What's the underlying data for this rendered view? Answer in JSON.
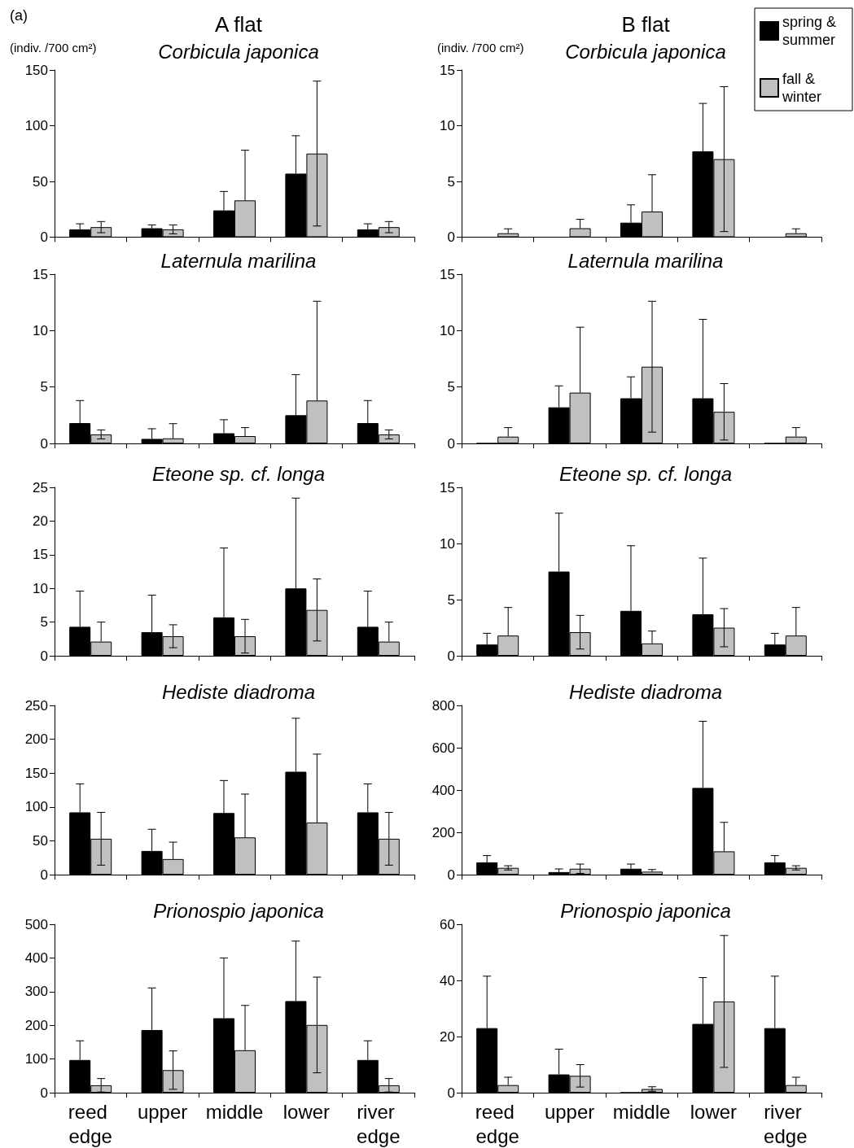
{
  "chart_data": [
    {
      "type": "bar",
      "title": "A flat",
      "subtitle": "Corbicula japonica",
      "ylabel": "(indiv. /700 cm²)",
      "annotations": [
        "(a)"
      ],
      "categories": [
        "reed edge",
        "upper",
        "middle",
        "lower",
        "river edge"
      ],
      "ylim": [
        0,
        150
      ],
      "yticks": [
        0,
        50,
        100,
        150
      ],
      "tick_labels": "y",
      "legend": false,
      "series": [
        {
          "color": "#000000",
          "values": [
            7,
            8,
            24,
            57,
            7
          ],
          "errors": [
            [
              7,
              12
            ],
            [
              8,
              11
            ],
            [
              24,
              41
            ],
            [
              57,
              91
            ],
            [
              7,
              12
            ]
          ]
        },
        {
          "color": "#c0c0c0",
          "values": [
            9,
            7,
            33,
            75,
            9
          ],
          "errors": [
            [
              4,
              14
            ],
            [
              3,
              11
            ],
            [
              33,
              78
            ],
            [
              10,
              140
            ],
            [
              4,
              14
            ]
          ]
        }
      ]
    },
    {
      "type": "bar",
      "title": "B flat",
      "subtitle": "Corbicula japonica",
      "ylabel": "(indiv. /700 cm²)",
      "categories": [
        "reed edge",
        "upper",
        "middle",
        "lower",
        "river edge"
      ],
      "ylim": [
        0,
        15
      ],
      "yticks": [
        0,
        5,
        10,
        15
      ],
      "tick_labels": "y",
      "legend": "top right",
      "series": [
        {
          "name": "spring & summer",
          "color": "#000000",
          "values": [
            0,
            0,
            1.3,
            7.7,
            0
          ],
          "errors": [
            null,
            null,
            [
              1.3,
              2.9
            ],
            [
              7.7,
              12
            ],
            null
          ]
        },
        {
          "name": "fall & winter",
          "color": "#c0c0c0",
          "values": [
            0.35,
            0.8,
            2.3,
            7.0,
            0.35
          ],
          "errors": [
            [
              0.35,
              0.75
            ],
            [
              0.8,
              1.6
            ],
            [
              2.3,
              5.6
            ],
            [
              0.5,
              13.5
            ],
            [
              0.35,
              0.75
            ]
          ]
        }
      ]
    },
    {
      "type": "bar",
      "title": "Laternula marilina",
      "categories": [
        "reed edge",
        "upper",
        "middle",
        "lower",
        "river edge"
      ],
      "ylim": [
        0,
        15
      ],
      "yticks": [
        0,
        5,
        10,
        15
      ],
      "tick_labels": "y",
      "legend": false,
      "series": [
        {
          "color": "#000000",
          "values": [
            1.8,
            0.4,
            0.9,
            2.5,
            1.8
          ],
          "errors": [
            [
              1.8,
              3.8
            ],
            [
              0.4,
              1.3
            ],
            [
              0.9,
              2.1
            ],
            [
              2.5,
              6.1
            ],
            [
              1.8,
              3.8
            ]
          ]
        },
        {
          "color": "#c0c0c0",
          "values": [
            0.8,
            0.45,
            0.65,
            3.8,
            0.8
          ],
          "errors": [
            [
              0.4,
              1.2
            ],
            [
              0.45,
              1.75
            ],
            [
              0.65,
              1.4
            ],
            [
              3.8,
              12.6
            ],
            [
              0.4,
              1.2
            ]
          ]
        }
      ]
    },
    {
      "type": "bar",
      "title": "Laternula marilina",
      "categories": [
        "reed edge",
        "upper",
        "middle",
        "lower",
        "river edge"
      ],
      "ylim": [
        0,
        15
      ],
      "yticks": [
        0,
        5,
        10,
        15
      ],
      "tick_labels": "y",
      "legend": false,
      "series": [
        {
          "color": "#000000",
          "values": [
            0,
            3.2,
            4.0,
            4.0,
            0
          ],
          "errors": [
            null,
            [
              3.2,
              5.1
            ],
            [
              4.0,
              5.9
            ],
            [
              4.0,
              11
            ],
            null
          ]
        },
        {
          "color": "#c0c0c0",
          "values": [
            0.6,
            4.5,
            6.8,
            2.8,
            0.6
          ],
          "errors": [
            [
              0.6,
              1.4
            ],
            [
              4.5,
              10.3
            ],
            [
              1.0,
              12.6
            ],
            [
              0.3,
              5.3
            ],
            [
              0.6,
              1.4
            ]
          ]
        }
      ]
    },
    {
      "type": "bar",
      "title": "Eteone sp. cf. longa",
      "categories": [
        "reed edge",
        "upper",
        "middle",
        "lower",
        "river edge"
      ],
      "ylim": [
        0,
        25
      ],
      "yticks": [
        0,
        5,
        10,
        15,
        20,
        25
      ],
      "tick_labels": "y",
      "legend": false,
      "series": [
        {
          "color": "#000000",
          "values": [
            4.3,
            3.5,
            5.7,
            10.0,
            4.3
          ],
          "errors": [
            [
              4.3,
              9.6
            ],
            [
              3.5,
              9.0
            ],
            [
              5.7,
              16
            ],
            [
              10.0,
              23.4
            ],
            [
              4.3,
              9.6
            ]
          ]
        },
        {
          "color": "#c0c0c0",
          "values": [
            2.1,
            2.9,
            2.9,
            6.8,
            2.1
          ],
          "errors": [
            [
              2.1,
              5.0
            ],
            [
              1.2,
              4.6
            ],
            [
              0.4,
              5.4
            ],
            [
              2.2,
              11.4
            ],
            [
              2.1,
              5.0
            ]
          ]
        }
      ]
    },
    {
      "type": "bar",
      "title": "Eteone sp. cf. longa",
      "categories": [
        "reed edge",
        "upper",
        "middle",
        "lower",
        "river edge"
      ],
      "ylim": [
        0,
        15
      ],
      "yticks": [
        0,
        5,
        10,
        15
      ],
      "tick_labels": "y",
      "legend": false,
      "series": [
        {
          "color": "#000000",
          "values": [
            1.0,
            7.5,
            4.0,
            3.7,
            1.0
          ],
          "errors": [
            [
              1.0,
              2.0
            ],
            [
              7.5,
              12.7
            ],
            [
              4.0,
              9.8
            ],
            [
              3.7,
              8.7
            ],
            [
              1.0,
              2.0
            ]
          ]
        },
        {
          "color": "#c0c0c0",
          "values": [
            1.8,
            2.1,
            1.1,
            2.5,
            1.8
          ],
          "errors": [
            [
              1.8,
              4.3
            ],
            [
              0.6,
              3.6
            ],
            [
              1.1,
              2.2
            ],
            [
              0.8,
              4.2
            ],
            [
              1.8,
              4.3
            ]
          ]
        }
      ]
    },
    {
      "type": "bar",
      "title": "Hediste diadroma",
      "categories": [
        "reed edge",
        "upper",
        "middle",
        "lower",
        "river edge"
      ],
      "ylim": [
        0,
        250
      ],
      "yticks": [
        0,
        50,
        100,
        150,
        200,
        250
      ],
      "tick_labels": "y",
      "legend": false,
      "series": [
        {
          "color": "#000000",
          "values": [
            92,
            35,
            91,
            152,
            92
          ],
          "errors": [
            [
              92,
              134
            ],
            [
              35,
              67
            ],
            [
              91,
              139
            ],
            [
              152,
              231
            ],
            [
              92,
              134
            ]
          ]
        },
        {
          "color": "#c0c0c0",
          "values": [
            53,
            23,
            55,
            77,
            53
          ],
          "errors": [
            [
              14,
              92
            ],
            [
              23,
              48
            ],
            [
              55,
              119
            ],
            [
              77,
              178
            ],
            [
              14,
              92
            ]
          ]
        }
      ]
    },
    {
      "type": "bar",
      "title": "Hediste diadroma",
      "categories": [
        "reed edge",
        "upper",
        "middle",
        "lower",
        "river edge"
      ],
      "ylim": [
        0,
        800
      ],
      "yticks": [
        0,
        200,
        400,
        600,
        800
      ],
      "tick_labels": "y",
      "legend": false,
      "series": [
        {
          "color": "#000000",
          "values": [
            58,
            12,
            28,
            410,
            58
          ],
          "errors": [
            [
              58,
              90
            ],
            [
              12,
              27
            ],
            [
              28,
              50
            ],
            [
              410,
              725
            ],
            [
              58,
              90
            ]
          ]
        },
        {
          "color": "#c0c0c0",
          "values": [
            32,
            28,
            14,
            110,
            32
          ],
          "errors": [
            [
              22,
              42
            ],
            [
              6,
              50
            ],
            [
              14,
              24
            ],
            [
              110,
              247
            ],
            [
              22,
              42
            ]
          ]
        }
      ]
    },
    {
      "type": "bar",
      "title": "Prionospio japonica",
      "categories": [
        "reed edge",
        "upper",
        "middle",
        "lower",
        "river edge"
      ],
      "ylim": [
        0,
        500
      ],
      "yticks": [
        0,
        100,
        200,
        300,
        400,
        500
      ],
      "legend": false,
      "series": [
        {
          "color": "#000000",
          "values": [
            97,
            186,
            221,
            272,
            97
          ],
          "errors": [
            [
              97,
              154
            ],
            [
              186,
              311
            ],
            [
              221,
              400
            ],
            [
              272,
              450
            ],
            [
              97,
              154
            ]
          ]
        },
        {
          "color": "#c0c0c0",
          "values": [
            22,
            67,
            126,
            201,
            22
          ],
          "errors": [
            [
              2,
              42
            ],
            [
              10,
              124
            ],
            [
              126,
              259
            ],
            [
              59,
              343
            ],
            [
              2,
              42
            ]
          ]
        }
      ]
    },
    {
      "type": "bar",
      "title": "Prionospio japonica",
      "categories": [
        "reed edge",
        "upper",
        "middle",
        "lower",
        "river edge"
      ],
      "ylim": [
        0,
        60
      ],
      "yticks": [
        0,
        20,
        40,
        60
      ],
      "legend": false,
      "series": [
        {
          "color": "#000000",
          "values": [
            23,
            6.5,
            0,
            24.5,
            23
          ],
          "errors": [
            [
              23,
              41.5
            ],
            [
              6.5,
              15.5
            ],
            null,
            [
              24.5,
              41
            ],
            [
              23,
              41.5
            ]
          ]
        },
        {
          "color": "#c0c0c0",
          "values": [
            2.7,
            6,
            1.3,
            32.5,
            2.7
          ],
          "errors": [
            [
              2.7,
              5.5
            ],
            [
              2,
              10
            ],
            [
              0.5,
              2.1
            ],
            [
              9,
              56
            ],
            [
              2.7,
              5.5
            ]
          ]
        }
      ]
    }
  ]
}
